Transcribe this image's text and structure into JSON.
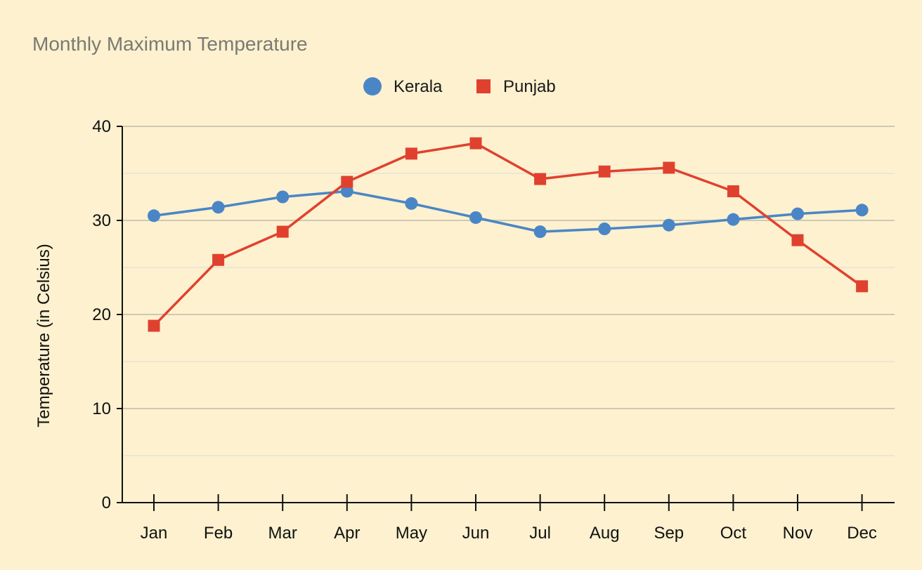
{
  "chart_data": {
    "type": "line",
    "title": "Monthly Maximum Temperature",
    "xlabel": "",
    "ylabel": "Temperature (in Celsius)",
    "categories": [
      "Jan",
      "Feb",
      "Mar",
      "Apr",
      "May",
      "Jun",
      "Jul",
      "Aug",
      "Sep",
      "Oct",
      "Nov",
      "Dec"
    ],
    "ylim": [
      0,
      40
    ],
    "yticks": [
      0,
      10,
      20,
      30,
      40
    ],
    "minor_gridlines": [
      5,
      15,
      25,
      35
    ],
    "grid": true,
    "legend_position": "top-center",
    "series": [
      {
        "name": "Kerala",
        "marker": "circle",
        "color": "#4a86c6",
        "values": [
          30.5,
          31.4,
          32.5,
          33.1,
          31.8,
          30.3,
          28.8,
          29.1,
          29.5,
          30.1,
          30.7,
          31.1
        ]
      },
      {
        "name": "Punjab",
        "marker": "square",
        "color": "#e0412f",
        "values": [
          18.8,
          25.8,
          28.8,
          34.1,
          37.1,
          38.2,
          34.4,
          35.2,
          35.6,
          33.1,
          27.9,
          23.0
        ]
      }
    ]
  }
}
